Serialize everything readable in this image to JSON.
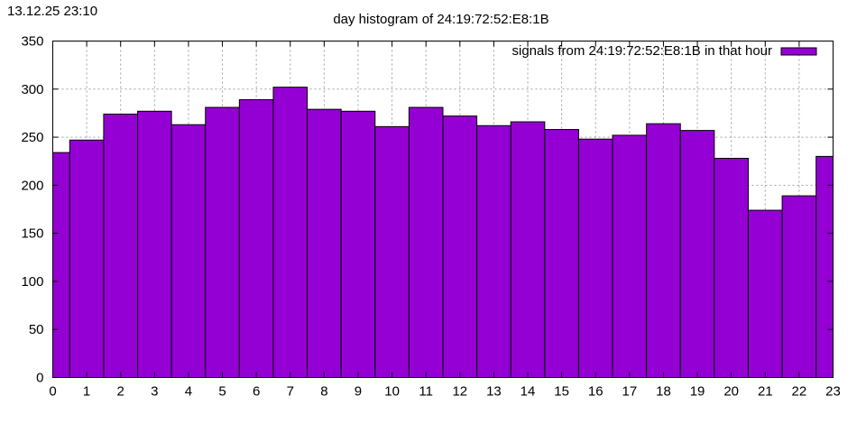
{
  "timestamp": "13.12.25 23:10",
  "chart_data": {
    "type": "bar",
    "title": "day histogram of 24:19:72:52:E8:1B",
    "xlabel": "",
    "ylabel": "",
    "categories": [
      "0",
      "1",
      "2",
      "3",
      "4",
      "5",
      "6",
      "7",
      "8",
      "9",
      "10",
      "11",
      "12",
      "13",
      "14",
      "15",
      "16",
      "17",
      "18",
      "19",
      "20",
      "21",
      "22",
      "23"
    ],
    "series": [
      {
        "name": "signals from 24:19:72:52:E8:1B in that hour",
        "color": "#9400d3",
        "values": [
          234,
          247,
          274,
          277,
          263,
          281,
          289,
          302,
          279,
          277,
          261,
          281,
          272,
          262,
          266,
          258,
          248,
          252,
          264,
          257,
          228,
          174,
          189,
          230
        ]
      }
    ],
    "ylim": [
      0,
      350
    ],
    "yticks": [
      0,
      50,
      100,
      150,
      200,
      250,
      300,
      350
    ],
    "xticks": [
      "0",
      "1",
      "2",
      "3",
      "4",
      "5",
      "6",
      "7",
      "8",
      "9",
      "10",
      "11",
      "12",
      "13",
      "14",
      "15",
      "16",
      "17",
      "18",
      "19",
      "20",
      "21",
      "22",
      "23"
    ],
    "grid": true,
    "legend_position": "top-right"
  }
}
